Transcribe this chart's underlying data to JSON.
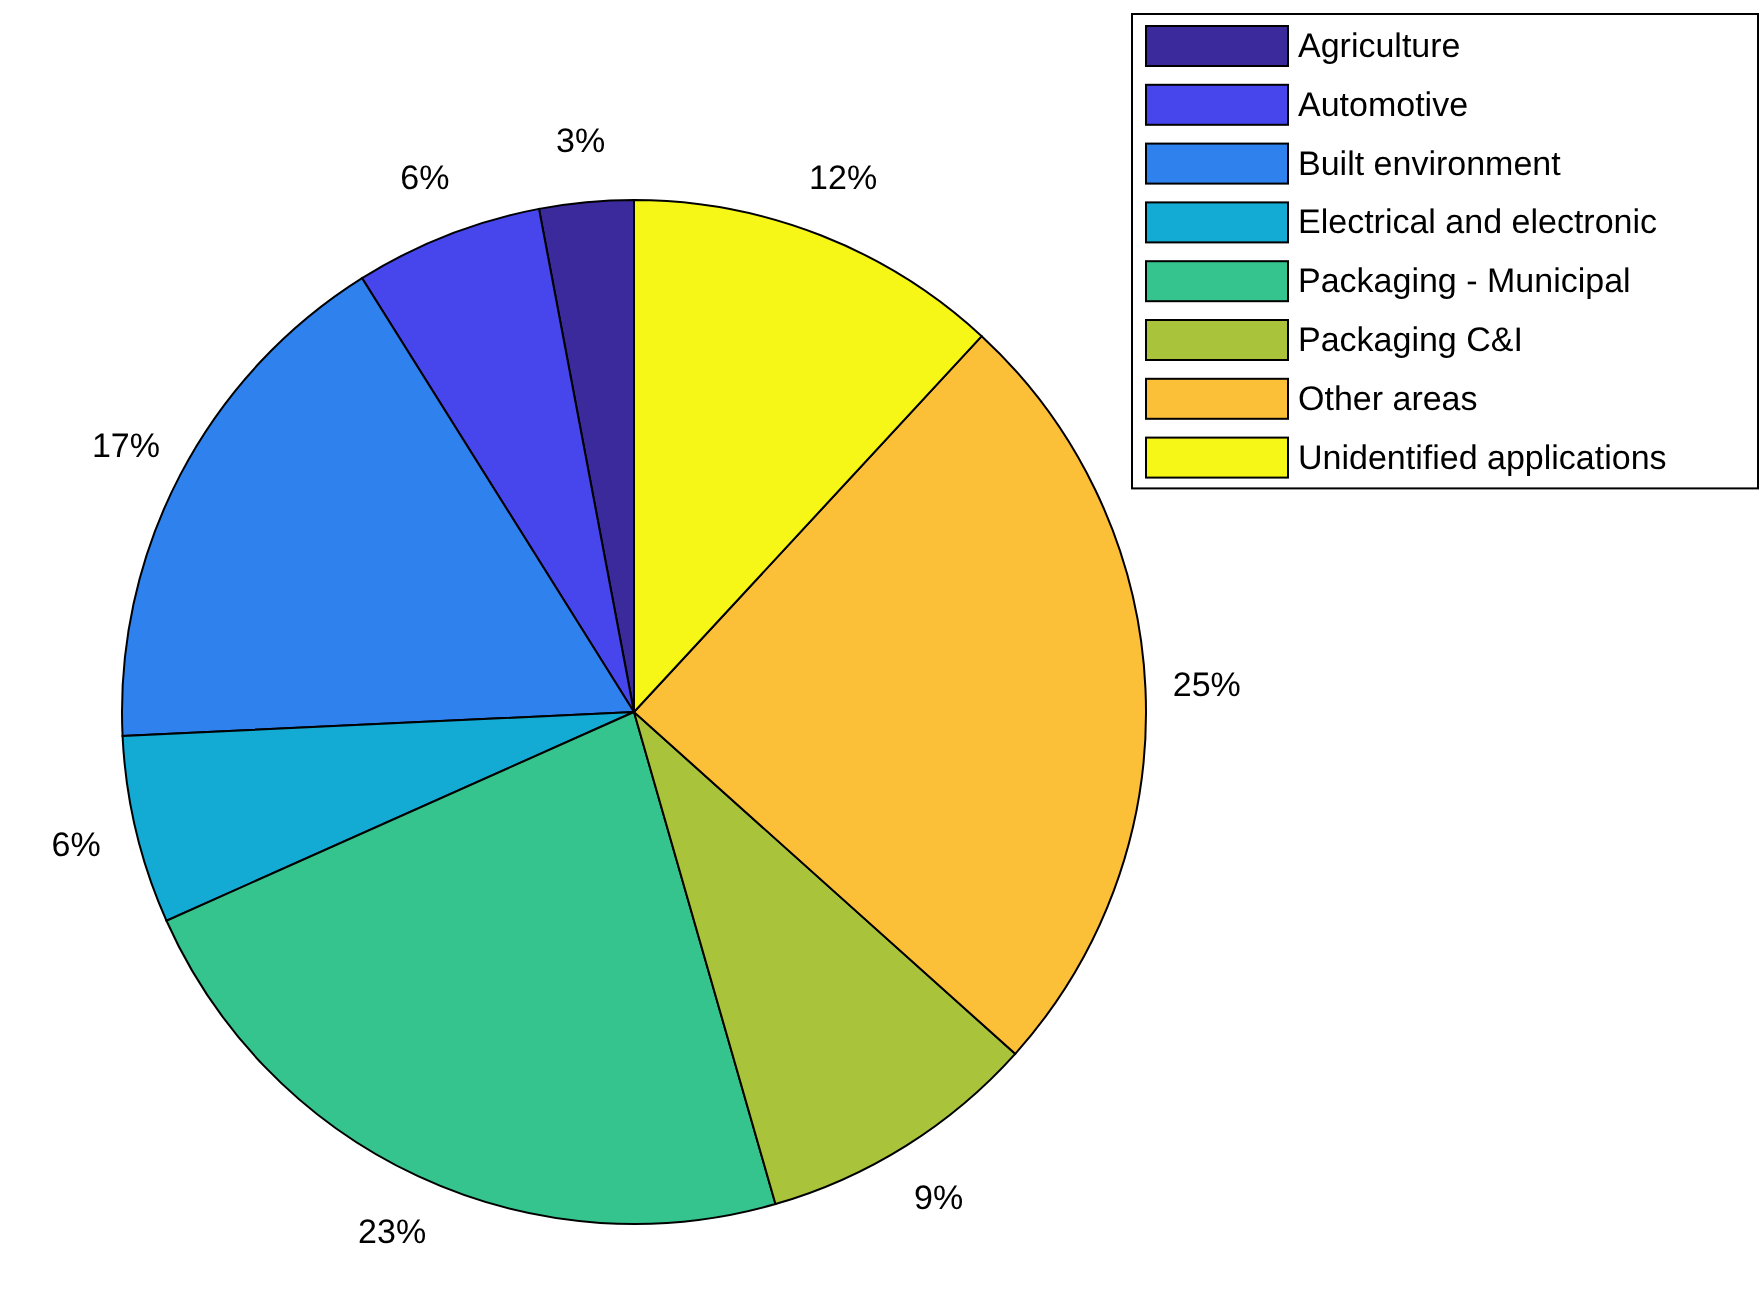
{
  "chart_data": {
    "type": "pie",
    "categories": [
      "Agriculture",
      "Automotive",
      "Built environment",
      "Electrical and electronic",
      "Packaging - Municipal",
      "Packaging C&I",
      "Other areas",
      "Unidentified applications"
    ],
    "values": [
      3,
      6,
      17,
      6,
      23,
      9,
      25,
      12
    ],
    "value_labels": [
      "3%",
      "6%",
      "17%",
      "6%",
      "23%",
      "9%",
      "25%",
      "12%"
    ],
    "colors": [
      "#3a2a9c",
      "#4646ec",
      "#2f82ee",
      "#13aad4",
      "#36c48e",
      "#a9c43b",
      "#fcbf38",
      "#f6f716"
    ],
    "legend": "top right"
  }
}
